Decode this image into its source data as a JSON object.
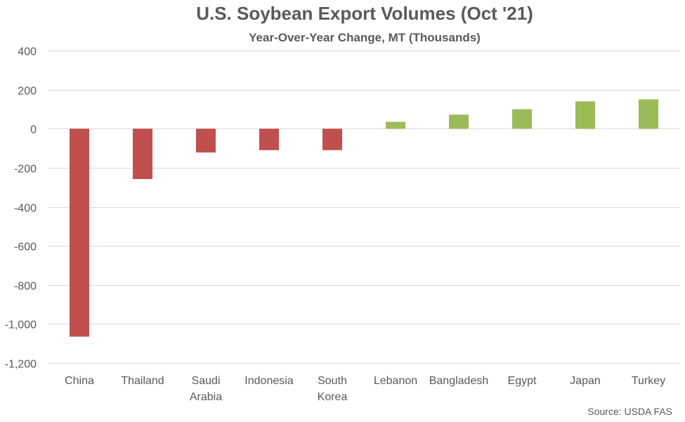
{
  "chart_data": {
    "type": "bar",
    "title": "U.S. Soybean Export Volumes (Oct '21)",
    "subtitle": "Year-Over-Year Change, MT (Thousands)",
    "categories": [
      "China",
      "Thailand",
      "Saudi Arabia",
      "Indonesia",
      "South Korea",
      "Lebanon",
      "Bangladesh",
      "Egypt",
      "Japan",
      "Turkey"
    ],
    "category_lines": [
      [
        "China"
      ],
      [
        "Thailand"
      ],
      [
        "Saudi",
        "Arabia"
      ],
      [
        "Indonesia"
      ],
      [
        "South",
        "Korea"
      ],
      [
        "Lebanon"
      ],
      [
        "Bangladesh"
      ],
      [
        "Egypt"
      ],
      [
        "Japan"
      ],
      [
        "Turkey"
      ]
    ],
    "values": [
      -1065,
      -258,
      -122,
      -110,
      -110,
      35,
      72,
      100,
      140,
      150
    ],
    "ylim": [
      -1200,
      400
    ],
    "yticks": [
      400,
      200,
      0,
      -200,
      -400,
      -600,
      -800,
      -1000,
      -1200
    ],
    "ytick_labels": [
      "400",
      "200",
      "0",
      "-200",
      "-400",
      "-600",
      "-800",
      "-1,000",
      "-1,200"
    ],
    "grid": true,
    "negative_color": "#c0504d",
    "positive_color": "#9bbb59",
    "source": "Source: USDA FAS"
  }
}
